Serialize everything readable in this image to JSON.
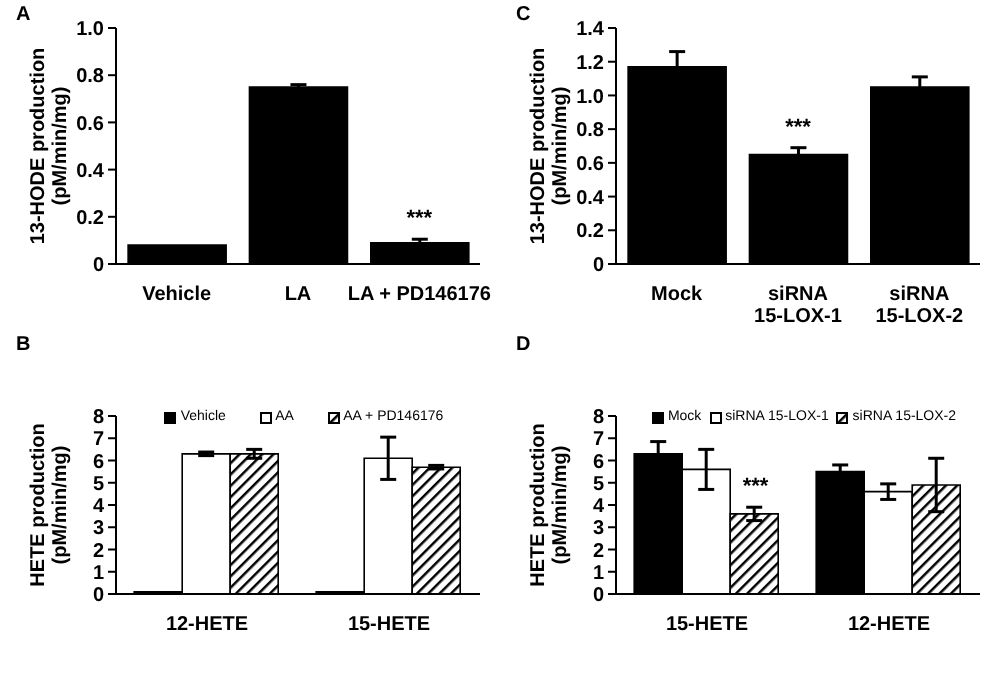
{
  "chart_data": [
    {
      "type": "bar",
      "title": "A",
      "ylabel": "13-HODE production\n(pM/min/mg)",
      "categories": [
        "Vehicle",
        "LA",
        "LA + PD146176"
      ],
      "series": [
        {
          "color": "#000000",
          "values": [
            0.08,
            0.75,
            0.09
          ],
          "errors": [
            null,
            0.01,
            0.015
          ]
        }
      ],
      "ylim": [
        0,
        1
      ],
      "yticks": [
        0,
        0.2,
        0.4,
        0.6,
        0.8,
        {
          "value": 1,
          "label": "1.0"
        }
      ],
      "grid": false,
      "legend": false,
      "annotations": [
        {
          "text": "***",
          "x": "LA + PD146176",
          "y": 0.09
        }
      ]
    },
    {
      "type": "bar",
      "title": "C",
      "ylabel": "13-HODE production\n(pM/min/mg)",
      "categories": [
        "Mock",
        "siRNA\n15-LOX-1",
        "siRNA\n15-LOX-2"
      ],
      "series": [
        {
          "color": "#000000",
          "values": [
            1.17,
            0.65,
            1.05
          ],
          "errors": [
            0.09,
            0.04,
            0.06
          ]
        }
      ],
      "ylim": [
        0,
        1.4
      ],
      "yticks": [
        0,
        0.2,
        0.4,
        0.6,
        0.8,
        {
          "value": 1,
          "label": "1.0"
        },
        1.2,
        1.4
      ],
      "grid": false,
      "legend": false,
      "annotations": [
        {
          "text": "***",
          "x": "siRNA\n15-LOX-1",
          "y": 0.65
        }
      ]
    },
    {
      "type": "bar",
      "title": "B",
      "ylabel": "HETE production\n(pM/min/mg)",
      "categories": [
        "12-HETE",
        "15-HETE"
      ],
      "series": [
        {
          "name": "Vehicle",
          "color": "#000000",
          "values": [
            0.1,
            0.1
          ]
        },
        {
          "name": "AA",
          "color": "#ffffff",
          "values": [
            6.3,
            6.1
          ],
          "errors": [
            0.08,
            0.95
          ]
        },
        {
          "name": "AA + PD146176",
          "color": "#000000",
          "values": [
            6.3,
            5.7
          ],
          "errors": [
            0.2,
            0.08
          ]
        }
      ],
      "ylim": [
        0,
        8
      ],
      "yticks": [
        0,
        1,
        2,
        3,
        4,
        5,
        6,
        7,
        8
      ],
      "grid": false,
      "legend": "top"
    },
    {
      "type": "bar",
      "title": "D",
      "ylabel": "HETE production\n(pM/min/mg)",
      "categories": [
        "15-HETE",
        "12-HETE"
      ],
      "series": [
        {
          "name": "Mock",
          "color": "#000000",
          "values": [
            6.3,
            5.5
          ],
          "errors": [
            0.55,
            0.3
          ]
        },
        {
          "name": "siRNA 15-LOX-1",
          "color": "#ffffff",
          "values": [
            5.6,
            4.6
          ],
          "errors": [
            0.9,
            0.35
          ]
        },
        {
          "name": "siRNA 15-LOX-2",
          "color": "#000000",
          "values": [
            3.6,
            4.9
          ],
          "errors": [
            0.3,
            1.2
          ]
        }
      ],
      "ylim": [
        0,
        8
      ],
      "yticks": [
        0,
        1,
        2,
        3,
        4,
        5,
        6,
        7,
        8
      ],
      "grid": false,
      "legend": "top",
      "annotations": [
        "***"
      ]
    }
  ]
}
